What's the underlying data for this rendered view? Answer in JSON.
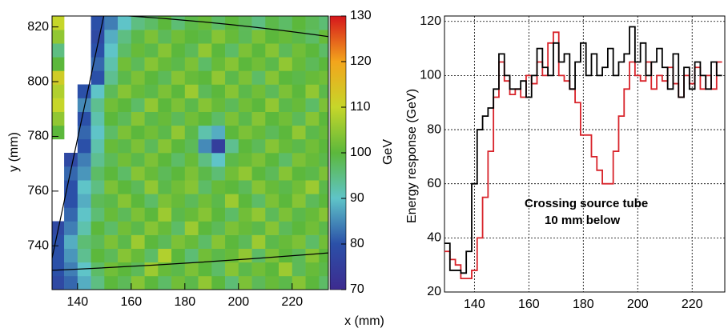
{
  "chart_data": [
    {
      "type": "heatmap",
      "ylabel": "y (mm)",
      "xlabel": "x (mm)",
      "colorbar_label": "GeV",
      "x": [
        132.5,
        137.5,
        142.5,
        147.5,
        152.5,
        157.5,
        162.5,
        167.5,
        172.5,
        177.5,
        182.5,
        187.5,
        192.5,
        197.5,
        202.5,
        207.5,
        212.5,
        217.5,
        222.5,
        227.5,
        232.5
      ],
      "y": [
        726.5,
        731.5,
        736.5,
        741.5,
        746.5,
        751.5,
        756.5,
        761.5,
        766.5,
        771.5,
        776.5,
        781.5,
        786.5,
        791.5,
        796.5,
        801.5,
        806.5,
        811.5,
        816.5,
        821.5
      ],
      "values": [
        [
          78,
          82,
          88,
          95,
          100,
          98,
          104,
          100,
          97,
          102,
          99,
          105,
          100,
          96,
          103,
          98,
          101,
          99,
          104,
          100,
          97
        ],
        [
          80,
          84,
          90,
          97,
          102,
          100,
          98,
          106,
          101,
          99,
          103,
          100,
          97,
          104,
          99,
          102,
          100,
          106,
          98,
          101,
          99
        ],
        [
          80,
          86,
          94,
          100,
          98,
          104,
          101,
          97,
          108,
          100,
          96,
          102,
          99,
          101,
          105,
          97,
          103,
          100,
          98,
          104,
          100
        ],
        [
          80,
          88,
          96,
          98,
          103,
          99,
          106,
          100,
          98,
          103,
          101,
          97,
          104,
          100,
          98,
          106,
          99,
          101,
          103,
          97,
          102
        ],
        [
          78,
          84,
          92,
          100,
          97,
          102,
          99,
          104,
          101,
          97,
          106,
          100,
          98,
          103,
          101,
          99,
          104,
          98,
          100,
          102,
          99
        ],
        [
          null,
          82,
          90,
          96,
          101,
          98,
          103,
          100,
          106,
          99,
          101,
          104,
          100,
          97,
          102,
          105,
          98,
          103,
          99,
          101,
          104
        ],
        [
          null,
          80,
          88,
          98,
          99,
          104,
          100,
          97,
          103,
          101,
          98,
          102,
          99,
          106,
          100,
          97,
          103,
          100,
          104,
          98,
          100
        ],
        [
          null,
          80,
          90,
          95,
          103,
          100,
          98,
          105,
          99,
          102,
          104,
          97,
          101,
          100,
          98,
          104,
          101,
          99,
          102,
          106,
          99
        ],
        [
          null,
          82,
          86,
          97,
          100,
          97,
          104,
          101,
          98,
          100,
          103,
          99,
          96,
          102,
          105,
          100,
          98,
          104,
          100,
          99,
          103
        ],
        [
          null,
          78,
          84,
          94,
          98,
          102,
          99,
          103,
          100,
          97,
          101,
          95,
          90,
          99,
          101,
          103,
          100,
          97,
          103,
          101,
          99
        ],
        [
          null,
          null,
          80,
          92,
          101,
          99,
          103,
          98,
          104,
          100,
          98,
          85,
          75,
          94,
          100,
          98,
          104,
          101,
          99,
          102,
          100
        ],
        [
          100,
          null,
          82,
          90,
          97,
          103,
          100,
          102,
          99,
          105,
          99,
          92,
          88,
          100,
          103,
          101,
          98,
          100,
          105,
          99,
          101
        ],
        [
          105,
          null,
          80,
          92,
          100,
          98,
          104,
          99,
          101,
          98,
          102,
          100,
          97,
          103,
          99,
          104,
          100,
          102,
          98,
          104,
          100
        ],
        [
          110,
          null,
          85,
          94,
          102,
          100,
          97,
          105,
          100,
          103,
          99,
          104,
          101,
          98,
          102,
          100,
          105,
          99,
          101,
          97,
          103
        ],
        [
          108,
          null,
          80,
          90,
          98,
          104,
          101,
          99,
          103,
          100,
          106,
          98,
          100,
          104,
          99,
          102,
          98,
          103,
          100,
          105,
          99
        ],
        [
          112,
          null,
          null,
          80,
          94,
          99,
          103,
          100,
          98,
          104,
          101,
          100,
          105,
          99,
          103,
          97,
          104,
          100,
          99,
          101,
          102
        ],
        [
          100,
          null,
          null,
          82,
          92,
          102,
          98,
          104,
          101,
          99,
          103,
          97,
          101,
          104,
          100,
          102,
          99,
          105,
          101,
          98,
          100
        ],
        [
          95,
          null,
          null,
          80,
          90,
          97,
          101,
          99,
          104,
          100,
          98,
          105,
          100,
          97,
          103,
          100,
          104,
          98,
          102,
          100,
          97
        ],
        [
          105,
          null,
          null,
          78,
          88,
          95,
          99,
          103,
          98,
          102,
          100,
          99,
          104,
          101,
          98,
          103,
          100,
          101,
          99,
          97,
          101
        ],
        [
          110,
          null,
          null,
          80,
          84,
          90,
          95,
          97,
          100,
          96,
          99,
          101,
          97,
          100,
          98,
          95,
          99,
          97,
          100,
          98,
          96
        ]
      ],
      "xlim": [
        130.5,
        233.5
      ],
      "ylim": [
        724,
        824
      ],
      "xticks": [
        140,
        160,
        180,
        200,
        220
      ],
      "yticks": [
        740,
        760,
        780,
        800,
        820
      ],
      "clim": [
        70,
        130
      ],
      "cticks": [
        70,
        80,
        90,
        100,
        110,
        120,
        130
      ],
      "colorscale": [
        "#3d2b8f",
        "#2b50a8",
        "#5fc4c8",
        "#5cb83c",
        "#c6d62a",
        "#f3a51c",
        "#d5161c"
      ]
    },
    {
      "type": "step",
      "ylabel": "Energy response (GeV)",
      "x": [
        130,
        132,
        134,
        136,
        138,
        140,
        142,
        144,
        146,
        148,
        150,
        152,
        154,
        156,
        158,
        160,
        162,
        164,
        166,
        168,
        170,
        172,
        174,
        176,
        178,
        180,
        182,
        184,
        186,
        188,
        190,
        192,
        194,
        196,
        198,
        200,
        202,
        204,
        206,
        208,
        210,
        212,
        214,
        216,
        218,
        220,
        222,
        224,
        226,
        228,
        230
      ],
      "series": [
        {
          "name": "Crossing source tube",
          "color": "#d8232a",
          "values": [
            35,
            32,
            30,
            25,
            25,
            28,
            40,
            55,
            72,
            92,
            105,
            98,
            93,
            95,
            92,
            100,
            97,
            105,
            100,
            112,
            116,
            100,
            98,
            95,
            90,
            78,
            78,
            70,
            65,
            60,
            60,
            72,
            85,
            95,
            105,
            100,
            98,
            105,
            95,
            100,
            98,
            103,
            97,
            92,
            100,
            97,
            103,
            95,
            100,
            95,
            105
          ]
        },
        {
          "name": "10 mm below",
          "color": "#000000",
          "values": [
            38,
            28,
            28,
            27,
            35,
            60,
            80,
            85,
            88,
            95,
            108,
            100,
            95,
            95,
            98,
            92,
            100,
            110,
            103,
            100,
            112,
            105,
            108,
            95,
            105,
            112,
            100,
            108,
            100,
            103,
            110,
            100,
            105,
            108,
            118,
            105,
            112,
            100,
            105,
            110,
            103,
            95,
            108,
            92,
            103,
            95,
            105,
            100,
            95,
            105,
            100
          ]
        }
      ],
      "xlim": [
        129,
        232
      ],
      "ylim": [
        20,
        122
      ],
      "xticks": [
        140,
        160,
        180,
        200,
        220
      ],
      "yticks": [
        20,
        40,
        60,
        80,
        100,
        120
      ],
      "grid": true
    }
  ]
}
